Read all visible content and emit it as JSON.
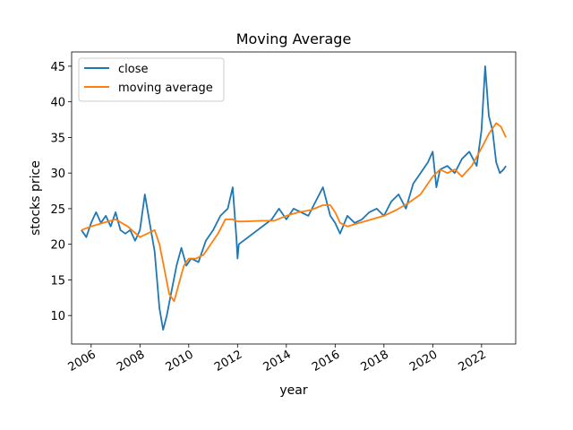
{
  "chart_data": {
    "type": "line",
    "title": "Moving Average",
    "xlabel": "year",
    "ylabel": "stocks price",
    "xlim": [
      2005.2,
      2023.4
    ],
    "ylim": [
      6.0,
      47.0
    ],
    "x_ticks": [
      2006,
      2008,
      2010,
      2012,
      2014,
      2016,
      2018,
      2020,
      2022
    ],
    "x_tick_labels": [
      "2006",
      "2008",
      "2010",
      "2012",
      "2014",
      "2016",
      "2018",
      "2020",
      "2022"
    ],
    "y_ticks": [
      10,
      15,
      20,
      25,
      30,
      35,
      40,
      45
    ],
    "y_tick_labels": [
      "10",
      "15",
      "20",
      "25",
      "30",
      "35",
      "40",
      "45"
    ],
    "grid": false,
    "legend": {
      "position": "upper left"
    },
    "series": [
      {
        "name": "close",
        "color": "#1f77b4",
        "x": [
          2005.6,
          2005.8,
          2006.0,
          2006.2,
          2006.4,
          2006.6,
          2006.8,
          2007.0,
          2007.2,
          2007.4,
          2007.6,
          2007.8,
          2008.0,
          2008.2,
          2008.4,
          2008.6,
          2008.8,
          2008.95,
          2009.1,
          2009.3,
          2009.5,
          2009.7,
          2009.9,
          2010.1,
          2010.4,
          2010.7,
          2011.0,
          2011.3,
          2011.6,
          2011.8,
          2011.95,
          2012.0,
          2012.05,
          2013.4,
          2013.7,
          2014.0,
          2014.3,
          2014.6,
          2014.9,
          2015.2,
          2015.5,
          2015.8,
          2016.0,
          2016.2,
          2016.5,
          2016.8,
          2017.1,
          2017.4,
          2017.7,
          2018.0,
          2018.3,
          2018.6,
          2018.9,
          2019.2,
          2019.5,
          2019.8,
          2020.0,
          2020.15,
          2020.3,
          2020.6,
          2020.9,
          2021.2,
          2021.5,
          2021.8,
          2022.0,
          2022.15,
          2022.3,
          2022.45,
          2022.6,
          2022.75,
          2022.9,
          2023.0
        ],
        "y": [
          22.0,
          21.0,
          23.0,
          24.5,
          23.0,
          24.0,
          22.5,
          24.5,
          22.0,
          21.5,
          22.0,
          20.5,
          22.0,
          27.0,
          23.0,
          19.0,
          11.0,
          8.0,
          10.0,
          13.5,
          17.0,
          19.5,
          17.0,
          18.0,
          17.5,
          20.5,
          22.0,
          24.0,
          25.0,
          28.0,
          21.0,
          18.0,
          20.0,
          23.5,
          25.0,
          23.5,
          25.0,
          24.5,
          24.0,
          26.0,
          28.0,
          24.0,
          23.0,
          21.5,
          24.0,
          23.0,
          23.5,
          24.5,
          25.0,
          24.0,
          26.0,
          27.0,
          25.0,
          28.5,
          30.0,
          31.5,
          33.0,
          28.0,
          30.5,
          31.0,
          30.0,
          32.0,
          33.0,
          31.0,
          36.0,
          45.0,
          38.0,
          36.0,
          31.5,
          30.0,
          30.5,
          31.0
        ]
      },
      {
        "name": "moving average",
        "color": "#ff7f0e",
        "x": [
          2005.6,
          2006.0,
          2006.5,
          2007.0,
          2007.5,
          2008.0,
          2008.3,
          2008.6,
          2008.8,
          2009.0,
          2009.2,
          2009.4,
          2009.6,
          2009.8,
          2010.0,
          2010.3,
          2010.6,
          2010.9,
          2011.2,
          2011.5,
          2011.8,
          2012.0,
          2012.3,
          2013.0,
          2013.5,
          2014.0,
          2014.5,
          2015.0,
          2015.5,
          2015.8,
          2016.0,
          2016.2,
          2016.5,
          2017.0,
          2017.5,
          2018.0,
          2018.5,
          2019.0,
          2019.5,
          2020.0,
          2020.3,
          2020.6,
          2020.9,
          2021.2,
          2021.6,
          2022.0,
          2022.3,
          2022.6,
          2022.8,
          2023.0
        ],
        "y": [
          22.0,
          22.5,
          23.0,
          23.5,
          22.5,
          21.0,
          21.5,
          22.0,
          20.0,
          16.5,
          13.0,
          12.0,
          14.5,
          17.0,
          18.0,
          18.0,
          18.5,
          20.0,
          21.5,
          23.5,
          23.5,
          23.2,
          23.2,
          23.3,
          23.3,
          24.0,
          24.5,
          24.8,
          25.5,
          25.5,
          24.5,
          23.0,
          22.5,
          23.0,
          23.5,
          24.0,
          24.8,
          25.8,
          27.0,
          29.5,
          30.5,
          30.0,
          30.5,
          29.5,
          31.0,
          33.5,
          35.5,
          37.0,
          36.5,
          35.0
        ]
      }
    ]
  }
}
